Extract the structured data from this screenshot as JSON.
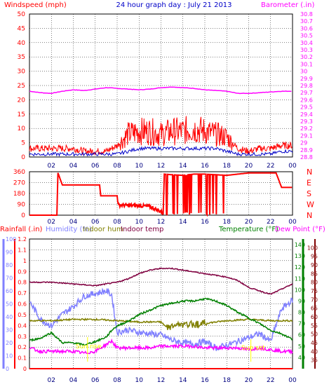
{
  "header": {
    "title": "24 hour graph day : July 21 2013",
    "wind_label": "Windspeed (mph)",
    "baro_label": "Barometer (.in)"
  },
  "lower_header": {
    "rain_label": "Rainfall (.in)",
    "humidity_label": "Humidity (%)",
    "indoor_hum_label": "Indoor hum",
    "indoor_temp_label": "Indoor temp",
    "temperature_label": "Temperature (°F)",
    "dewpoint_label": "Dew Point (°F)"
  },
  "annotations": [
    "Sun rise",
    "Sun set"
  ],
  "colors": {
    "wind": "#ff0000",
    "wind_avg": "#0000c8",
    "baro": "#ff00ff",
    "direction": "#ff0000",
    "rain": "#ff0000",
    "humidity": "#8080ff",
    "indoor_hum": "#808000",
    "indoor_temp": "#800040",
    "temperature": "#008000",
    "dewpoint": "#800000",
    "sun": "#ffff00",
    "grid": "#000000"
  },
  "chart_data": [
    {
      "type": "line",
      "name": "wind-baro",
      "x_ticks": [
        "02",
        "04",
        "06",
        "08",
        "10",
        "12",
        "14",
        "16",
        "18",
        "20",
        "22",
        "00"
      ],
      "y_left_ticks": [
        "0",
        "5",
        "10",
        "15",
        "20",
        "25",
        "30",
        "35",
        "40",
        "45",
        "50"
      ],
      "y_left_range": [
        0,
        50
      ],
      "y_right_ticks": [
        "28.8",
        "28.9",
        "29",
        "29.1",
        "29.2",
        "29.3",
        "29.4",
        "29.5",
        "29.6",
        "29.7",
        "29.8",
        "29.9",
        "30",
        "30.1",
        "30.2",
        "30.3",
        "30.4",
        "30.5",
        "30.6",
        "30.7",
        "30.8"
      ],
      "y_right_range": [
        28.8,
        30.8
      ],
      "series": [
        {
          "name": "Barometer (.in)",
          "axis": "right",
          "x": [
            0,
            1,
            2,
            3,
            4,
            5,
            6,
            7,
            8,
            9,
            10,
            11,
            12,
            13,
            14,
            15,
            16,
            17,
            18,
            19,
            20,
            21,
            22,
            23,
            24
          ],
          "y": [
            29.72,
            29.7,
            29.69,
            29.72,
            29.74,
            29.73,
            29.75,
            29.77,
            29.76,
            29.75,
            29.74,
            29.75,
            29.77,
            29.78,
            29.77,
            29.76,
            29.74,
            29.73,
            29.72,
            29.69,
            29.69,
            29.7,
            29.71,
            29.72,
            29.72
          ]
        },
        {
          "name": "Windspeed (mph)",
          "axis": "left",
          "x": [
            0,
            1,
            2,
            3,
            4,
            5,
            6,
            7,
            8,
            9,
            10,
            11,
            12,
            13,
            14,
            15,
            16,
            17,
            18,
            19,
            20,
            21,
            22,
            23,
            24
          ],
          "y": [
            3,
            3,
            3,
            3,
            3,
            2,
            2,
            2,
            4,
            8,
            9,
            9,
            8,
            9,
            9,
            10,
            9,
            8,
            7,
            3,
            2,
            3,
            3,
            4,
            4
          ]
        },
        {
          "name": "Wind average",
          "axis": "left",
          "x": [
            0,
            1,
            2,
            3,
            4,
            5,
            6,
            7,
            8,
            9,
            10,
            11,
            12,
            13,
            14,
            15,
            16,
            17,
            18,
            19,
            20,
            21,
            22,
            23,
            24
          ],
          "y": [
            1,
            1,
            1,
            1,
            1,
            1,
            1,
            1,
            1,
            2,
            3,
            3,
            3,
            3,
            3,
            3,
            3,
            3,
            2,
            1,
            1,
            1,
            1,
            2,
            2
          ]
        }
      ]
    },
    {
      "type": "line",
      "name": "wind-direction",
      "x_ticks": [
        "02",
        "04",
        "06",
        "08",
        "10",
        "12",
        "14",
        "16",
        "18",
        "20",
        "22",
        "00"
      ],
      "y_left_ticks": [
        "0",
        "90",
        "180",
        "270",
        "360"
      ],
      "y_right_ticks": [
        "N",
        "W",
        "S",
        "E",
        "N"
      ],
      "y_range": [
        0,
        360
      ],
      "series": [
        {
          "name": "Wind direction",
          "x": [
            0,
            2.5,
            2.6,
            3.0,
            3.5,
            4.0,
            5.0,
            6.0,
            6.4,
            6.5,
            7.5,
            8.0,
            8.1,
            9.0,
            10.0,
            11.0,
            12.0,
            12.2,
            12.3,
            13.0,
            14.0,
            15.0,
            16.0,
            17.0,
            18.0,
            19.0,
            20.0,
            21.0,
            22.0,
            22.5,
            23.0,
            23.5,
            24.0
          ],
          "y": [
            0,
            0,
            350,
            250,
            250,
            250,
            250,
            250,
            250,
            160,
            160,
            160,
            85,
            80,
            80,
            70,
            30,
            10,
            340,
            335,
            330,
            340,
            340,
            335,
            330,
            340,
            350,
            350,
            350,
            350,
            230,
            230,
            230
          ]
        }
      ]
    },
    {
      "type": "line",
      "name": "temperature-humidity-rain",
      "x_ticks": [
        "02",
        "04",
        "06",
        "08",
        "10",
        "12",
        "14",
        "16",
        "18",
        "20",
        "22",
        "00"
      ],
      "y_rain_ticks": [
        "0",
        "0.1",
        "0.2",
        "0.3",
        "0.4",
        "0.5",
        "0.6",
        "0.7",
        "0.8",
        "0.9",
        "1",
        "1.1",
        "1.2"
      ],
      "y_rain_range": [
        0,
        1.2
      ],
      "y_hum_ticks": [
        "0",
        "10",
        "20",
        "30",
        "40",
        "50",
        "60",
        "70",
        "80",
        "90",
        "100"
      ],
      "y_hum_range": [
        0,
        100
      ],
      "y_temp_ticks": [
        "40",
        "50",
        "60",
        "70",
        "80",
        "90",
        "100",
        "110",
        "120",
        "130",
        "140"
      ],
      "y_temp_range": [
        30,
        145
      ],
      "y_dew_ticks": [
        "35",
        "40",
        "45",
        "50",
        "55",
        "60",
        "65",
        "70",
        "75",
        "80",
        "85",
        "90",
        "95",
        "100"
      ],
      "y_dew_range": [
        30,
        105
      ],
      "series": [
        {
          "name": "Rainfall (.in)",
          "axis": "rain",
          "x": [
            0,
            24
          ],
          "y": [
            0,
            0
          ]
        },
        {
          "name": "Humidity (%)",
          "axis": "hum",
          "x": [
            0,
            1,
            2,
            3,
            4,
            5,
            6,
            7,
            7.5,
            8,
            9,
            10,
            11,
            12,
            13,
            14,
            15,
            16,
            17,
            18,
            19,
            20,
            21,
            22,
            23,
            24
          ],
          "y": [
            52,
            38,
            33,
            42,
            48,
            56,
            58,
            60,
            57,
            28,
            30,
            28,
            27,
            26,
            22,
            20,
            19,
            21,
            16,
            18,
            21,
            24,
            27,
            21,
            46,
            53
          ]
        },
        {
          "name": "Indoor hum",
          "axis": "hum",
          "x": [
            0,
            2,
            4,
            6,
            8,
            10,
            12,
            12.5,
            13,
            16,
            18,
            20,
            22,
            24
          ],
          "y": [
            37,
            37,
            38,
            38,
            37,
            36,
            36,
            32,
            33,
            35,
            37,
            38,
            37,
            37
          ]
        },
        {
          "name": "Indoor temp",
          "axis": "dew",
          "x": [
            0,
            2,
            4,
            6,
            8,
            9,
            10,
            11,
            12,
            13,
            14,
            15,
            16,
            17,
            18,
            19,
            20,
            21,
            22,
            23,
            24
          ],
          "y": [
            80,
            80,
            79,
            78,
            80,
            82,
            85,
            87,
            88,
            88,
            87,
            86,
            85,
            84,
            83,
            81,
            77,
            75,
            73,
            76,
            79
          ]
        },
        {
          "name": "Temperature (°F)",
          "axis": "temp",
          "x": [
            0,
            1,
            2,
            3,
            4,
            5,
            6,
            7,
            7.5,
            8,
            9,
            10,
            11,
            12,
            13,
            14,
            15,
            16,
            17,
            18,
            19,
            20,
            21,
            22,
            23,
            24
          ],
          "y": [
            55,
            57,
            62,
            53,
            53,
            51,
            54,
            58,
            64,
            68,
            72,
            78,
            82,
            86,
            88,
            90,
            90,
            92,
            90,
            86,
            80,
            75,
            70,
            64,
            61,
            56
          ]
        },
        {
          "name": "Dew Point (°F)",
          "axis": "dew",
          "x": [
            0,
            1,
            2,
            3,
            4,
            5,
            6,
            7,
            7.5,
            8,
            9,
            10,
            11,
            12,
            13,
            14,
            15,
            16,
            17,
            18,
            19,
            20,
            21,
            22,
            23,
            24
          ],
          "y": [
            42,
            40,
            40,
            40,
            40,
            39,
            40,
            44,
            46,
            42,
            42,
            42,
            42,
            43,
            43,
            43,
            43,
            42,
            42,
            42,
            42,
            41,
            42,
            41,
            40,
            40
          ]
        }
      ]
    }
  ]
}
